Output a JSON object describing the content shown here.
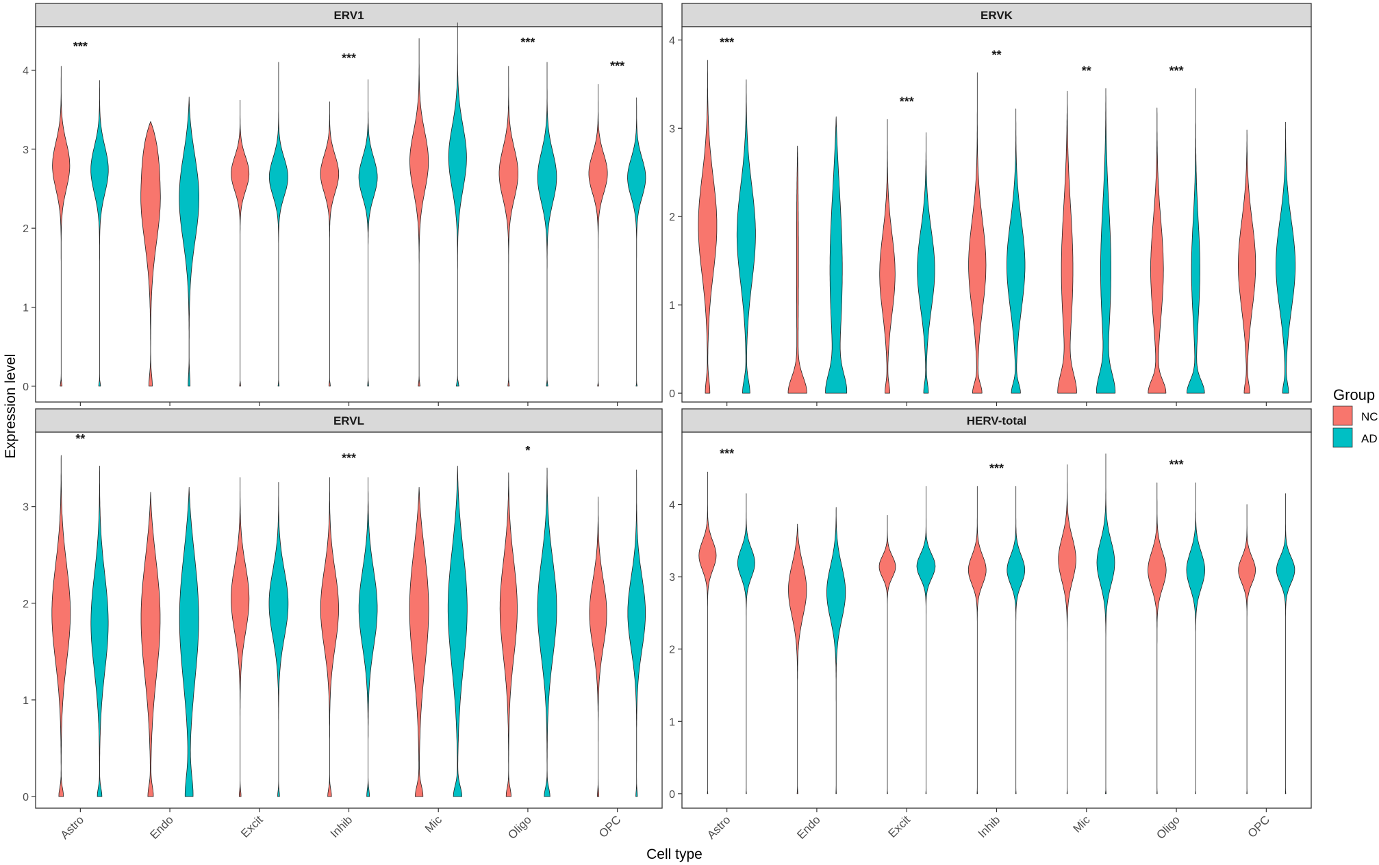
{
  "chart_data": {
    "type": "violin",
    "xlabel": "Cell type",
    "ylabel": "Expression level",
    "categories": [
      "Astro",
      "Endo",
      "Excit",
      "Inhib",
      "Mic",
      "Oligo",
      "OPC"
    ],
    "legend": {
      "title": "Group",
      "position": "right",
      "entries": [
        {
          "name": "NC",
          "color": "#F8766D"
        },
        {
          "name": "AD",
          "color": "#00BFC4"
        }
      ]
    },
    "panels": [
      {
        "title": "ERV1",
        "ylim": [
          -0.2,
          4.55
        ],
        "yticks": [
          0,
          1,
          2,
          3,
          4
        ],
        "significance": [
          {
            "category": "Astro",
            "label": "***",
            "y": 4.3
          },
          {
            "category": "Inhib",
            "label": "***",
            "y": 4.15
          },
          {
            "category": "Oligo",
            "label": "***",
            "y": 4.35
          },
          {
            "category": "OPC",
            "label": "***",
            "y": 4.05
          }
        ],
        "violins": {
          "NC": [
            {
              "max": 4.05,
              "peak": 2.8,
              "w": 0.46,
              "sd": 0.3,
              "zero": 0.06,
              "zw": 0.05
            },
            {
              "max": 3.35,
              "peak": 2.45,
              "w": 0.53,
              "sd": 0.6,
              "zero": 0.2,
              "zw": 0.09,
              "flat": true
            },
            {
              "max": 3.62,
              "peak": 2.7,
              "w": 0.49,
              "sd": 0.22,
              "zero": 0.04,
              "zw": 0.03
            },
            {
              "max": 3.6,
              "peak": 2.7,
              "w": 0.5,
              "sd": 0.24,
              "zero": 0.05,
              "zw": 0.04
            },
            {
              "max": 4.4,
              "peak": 2.85,
              "w": 0.49,
              "sd": 0.38,
              "zero": 0.06,
              "zw": 0.05
            },
            {
              "max": 4.05,
              "peak": 2.7,
              "w": 0.5,
              "sd": 0.32,
              "zero": 0.05,
              "zw": 0.04
            },
            {
              "max": 3.82,
              "peak": 2.7,
              "w": 0.5,
              "sd": 0.25,
              "zero": 0.03,
              "zw": 0.03
            }
          ],
          "AD": [
            {
              "max": 3.87,
              "peak": 2.75,
              "w": 0.47,
              "sd": 0.3,
              "zero": 0.06,
              "zw": 0.05
            },
            {
              "max": 3.66,
              "peak": 2.4,
              "w": 0.52,
              "sd": 0.55,
              "zero": 0.2,
              "zw": 0.05
            },
            {
              "max": 4.1,
              "peak": 2.65,
              "w": 0.49,
              "sd": 0.24,
              "zero": 0.04,
              "zw": 0.03
            },
            {
              "max": 3.88,
              "peak": 2.65,
              "w": 0.49,
              "sd": 0.25,
              "zero": 0.05,
              "zw": 0.03
            },
            {
              "max": 4.6,
              "peak": 2.9,
              "w": 0.47,
              "sd": 0.4,
              "zero": 0.06,
              "zw": 0.07
            },
            {
              "max": 4.1,
              "peak": 2.65,
              "w": 0.5,
              "sd": 0.32,
              "zero": 0.05,
              "zw": 0.04
            },
            {
              "max": 3.65,
              "peak": 2.65,
              "w": 0.49,
              "sd": 0.25,
              "zero": 0.03,
              "zw": 0.03
            }
          ]
        }
      },
      {
        "title": "ERVK",
        "ylim": [
          -0.1,
          4.15
        ],
        "yticks": [
          0,
          1,
          2,
          3,
          4
        ],
        "significance": [
          {
            "category": "Astro",
            "label": "***",
            "y": 3.97
          },
          {
            "category": "Excit",
            "label": "***",
            "y": 3.3
          },
          {
            "category": "Inhib",
            "label": "**",
            "y": 3.83
          },
          {
            "category": "Mic",
            "label": "**",
            "y": 3.65
          },
          {
            "category": "Oligo",
            "label": "***",
            "y": 3.65
          }
        ],
        "violins": {
          "NC": [
            {
              "max": 3.77,
              "peak": 1.9,
              "w": 0.48,
              "sd": 0.55,
              "zero": 0.2,
              "zw": 0.12
            },
            {
              "max": 2.8,
              "peak": 1.5,
              "w": 0.05,
              "sd": 1.0,
              "zero": 0.25,
              "zw": 0.47
            },
            {
              "max": 3.1,
              "peak": 1.35,
              "w": 0.4,
              "sd": 0.45,
              "zero": 0.15,
              "zw": 0.12
            },
            {
              "max": 3.63,
              "peak": 1.45,
              "w": 0.45,
              "sd": 0.5,
              "zero": 0.15,
              "zw": 0.24
            },
            {
              "max": 3.42,
              "peak": 1.4,
              "w": 0.3,
              "sd": 0.7,
              "zero": 0.3,
              "zw": 0.45
            },
            {
              "max": 3.23,
              "peak": 1.4,
              "w": 0.33,
              "sd": 0.55,
              "zero": 0.2,
              "zw": 0.45
            },
            {
              "max": 2.98,
              "peak": 1.45,
              "w": 0.45,
              "sd": 0.5,
              "zero": 0.15,
              "zw": 0.14
            }
          ],
          "AD": [
            {
              "max": 3.55,
              "peak": 1.8,
              "w": 0.48,
              "sd": 0.55,
              "zero": 0.2,
              "zw": 0.19
            },
            {
              "max": 3.13,
              "peak": 1.4,
              "w": 0.32,
              "sd": 0.85,
              "zero": 0.3,
              "zw": 0.47
            },
            {
              "max": 2.95,
              "peak": 1.4,
              "w": 0.45,
              "sd": 0.45,
              "zero": 0.15,
              "zw": 0.12
            },
            {
              "max": 3.22,
              "peak": 1.45,
              "w": 0.47,
              "sd": 0.5,
              "zero": 0.15,
              "zw": 0.23
            },
            {
              "max": 3.45,
              "peak": 1.4,
              "w": 0.27,
              "sd": 0.7,
              "zero": 0.3,
              "zw": 0.45
            },
            {
              "max": 3.45,
              "peak": 1.4,
              "w": 0.22,
              "sd": 0.55,
              "zero": 0.2,
              "zw": 0.45
            },
            {
              "max": 3.07,
              "peak": 1.45,
              "w": 0.5,
              "sd": 0.5,
              "zero": 0.15,
              "zw": 0.15
            }
          ]
        }
      },
      {
        "title": "ERVL",
        "ylim": [
          -0.12,
          3.77
        ],
        "yticks": [
          0,
          1,
          2,
          3
        ],
        "significance": [
          {
            "category": "Astro",
            "label": "**",
            "y": 3.7
          },
          {
            "category": "Inhib",
            "label": "***",
            "y": 3.5
          },
          {
            "category": "Oligo",
            "label": "*",
            "y": 3.58
          }
        ],
        "violins": {
          "NC": [
            {
              "max": 3.53,
              "peak": 1.9,
              "w": 0.48,
              "sd": 0.5,
              "zero": 0.12,
              "zw": 0.12
            },
            {
              "max": 3.15,
              "peak": 1.85,
              "w": 0.5,
              "sd": 0.6,
              "zero": 0.15,
              "zw": 0.14
            },
            {
              "max": 3.3,
              "peak": 2.05,
              "w": 0.47,
              "sd": 0.35,
              "zero": 0.08,
              "zw": 0.05
            },
            {
              "max": 3.3,
              "peak": 1.95,
              "w": 0.47,
              "sd": 0.4,
              "zero": 0.1,
              "zw": 0.1
            },
            {
              "max": 3.2,
              "peak": 1.95,
              "w": 0.5,
              "sd": 0.6,
              "zero": 0.15,
              "zw": 0.2
            },
            {
              "max": 3.35,
              "peak": 1.95,
              "w": 0.45,
              "sd": 0.5,
              "zero": 0.12,
              "zw": 0.13
            },
            {
              "max": 3.1,
              "peak": 1.9,
              "w": 0.45,
              "sd": 0.35,
              "zero": 0.08,
              "zw": 0.04
            }
          ],
          "AD": [
            {
              "max": 3.42,
              "peak": 1.8,
              "w": 0.45,
              "sd": 0.5,
              "zero": 0.12,
              "zw": 0.12
            },
            {
              "max": 3.2,
              "peak": 1.85,
              "w": 0.5,
              "sd": 0.65,
              "zero": 0.3,
              "zw": 0.2
            },
            {
              "max": 3.25,
              "peak": 2.0,
              "w": 0.5,
              "sd": 0.35,
              "zero": 0.08,
              "zw": 0.05
            },
            {
              "max": 3.3,
              "peak": 1.95,
              "w": 0.48,
              "sd": 0.4,
              "zero": 0.1,
              "zw": 0.07
            },
            {
              "max": 3.42,
              "peak": 1.95,
              "w": 0.5,
              "sd": 0.6,
              "zero": 0.15,
              "zw": 0.22
            },
            {
              "max": 3.4,
              "peak": 1.95,
              "w": 0.5,
              "sd": 0.5,
              "zero": 0.12,
              "zw": 0.15
            },
            {
              "max": 3.38,
              "peak": 1.9,
              "w": 0.46,
              "sd": 0.38,
              "zero": 0.08,
              "zw": 0.04
            }
          ]
        }
      },
      {
        "title": "HERV-total",
        "ylim": [
          -0.2,
          5.0
        ],
        "yticks": [
          0,
          1,
          2,
          3,
          4
        ],
        "significance": [
          {
            "category": "Astro",
            "label": "***",
            "y": 4.7
          },
          {
            "category": "Inhib",
            "label": "***",
            "y": 4.5
          },
          {
            "category": "Oligo",
            "label": "***",
            "y": 4.55
          }
        ],
        "violins": {
          "NC": [
            {
              "max": 4.45,
              "peak": 3.3,
              "w": 0.47,
              "sd": 0.2,
              "zero": 0.03,
              "zw": 0.01
            },
            {
              "max": 3.73,
              "peak": 2.85,
              "w": 0.5,
              "sd": 0.38,
              "zero": 0.05,
              "zw": 0.02
            },
            {
              "max": 3.85,
              "peak": 3.15,
              "w": 0.49,
              "sd": 0.15,
              "zero": 0.03,
              "zw": 0.01
            },
            {
              "max": 4.25,
              "peak": 3.1,
              "w": 0.48,
              "sd": 0.2,
              "zero": 0.03,
              "zw": 0.01
            },
            {
              "max": 4.55,
              "peak": 3.25,
              "w": 0.47,
              "sd": 0.3,
              "zero": 0.03,
              "zw": 0.01
            },
            {
              "max": 4.3,
              "peak": 3.1,
              "w": 0.49,
              "sd": 0.25,
              "zero": 0.03,
              "zw": 0.01
            },
            {
              "max": 4.0,
              "peak": 3.1,
              "w": 0.48,
              "sd": 0.18,
              "zero": 0.03,
              "zw": 0.01
            }
          ],
          "AD": [
            {
              "max": 4.15,
              "peak": 3.2,
              "w": 0.48,
              "sd": 0.2,
              "zero": 0.03,
              "zw": 0.01
            },
            {
              "max": 3.96,
              "peak": 2.8,
              "w": 0.5,
              "sd": 0.38,
              "zero": 0.05,
              "zw": 0.01
            },
            {
              "max": 4.25,
              "peak": 3.15,
              "w": 0.5,
              "sd": 0.17,
              "zero": 0.03,
              "zw": 0.01
            },
            {
              "max": 4.25,
              "peak": 3.1,
              "w": 0.48,
              "sd": 0.2,
              "zero": 0.03,
              "zw": 0.01
            },
            {
              "max": 4.7,
              "peak": 3.2,
              "w": 0.47,
              "sd": 0.3,
              "zero": 0.03,
              "zw": 0.02
            },
            {
              "max": 4.3,
              "peak": 3.1,
              "w": 0.49,
              "sd": 0.25,
              "zero": 0.03,
              "zw": 0.01
            },
            {
              "max": 4.15,
              "peak": 3.1,
              "w": 0.5,
              "sd": 0.18,
              "zero": 0.03,
              "zw": 0.01
            }
          ]
        }
      }
    ]
  }
}
